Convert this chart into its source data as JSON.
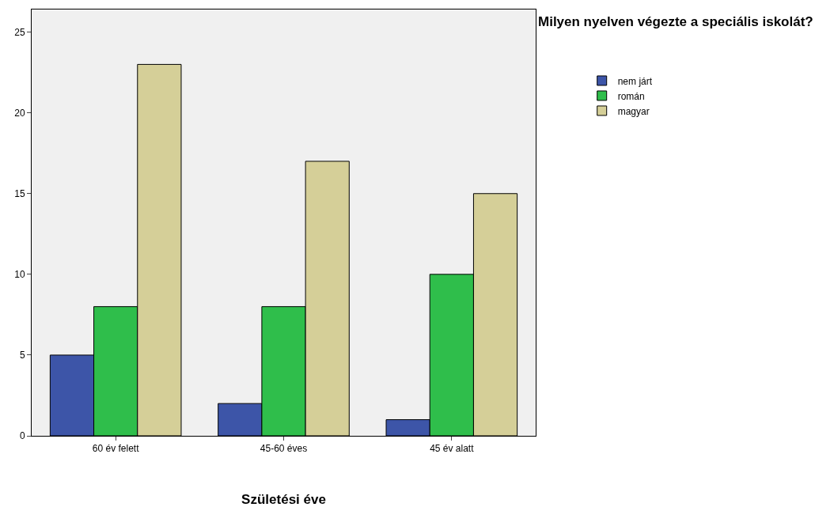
{
  "chart_data": {
    "type": "bar",
    "xlabel": "Születési éve",
    "legend_title": "Milyen nyelven végezte a speciális iskolát?",
    "categories": [
      "60 év felett",
      "45-60 éves",
      "45 év alatt"
    ],
    "series": [
      {
        "name": "nem járt",
        "color": "#3d55a8",
        "values": [
          5,
          2,
          1
        ]
      },
      {
        "name": "román",
        "color": "#2fbe4b",
        "values": [
          8,
          8,
          10
        ]
      },
      {
        "name": "magyar",
        "color": "#d5cf98",
        "values": [
          23,
          17,
          15
        ]
      }
    ],
    "ylim": [
      0,
      26.4
    ],
    "yticks": [
      0,
      5,
      10,
      15,
      20,
      25
    ],
    "grid": false,
    "legend": "top right"
  }
}
